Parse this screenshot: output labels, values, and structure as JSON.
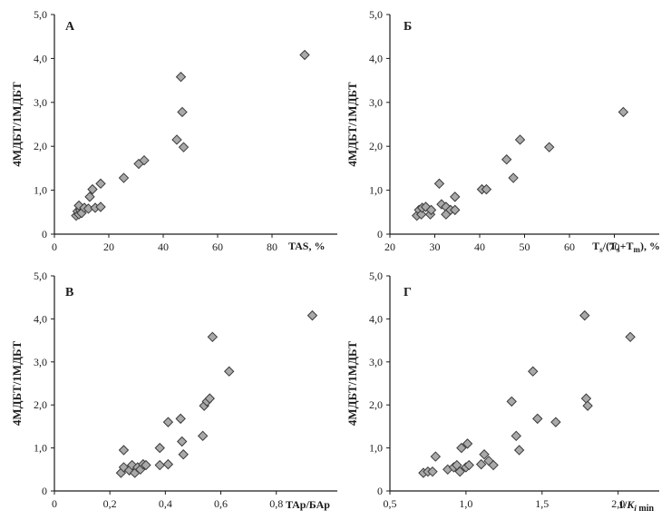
{
  "colors": {
    "marker_fill": "#a9a9a9",
    "marker_stroke": "#3a3a3a",
    "axis": "#1c1c1c",
    "background": "#ffffff"
  },
  "chart_data": [
    {
      "type": "scatter",
      "panel": "А",
      "ylabel": "4МДБТ/1МДБТ",
      "xlabel_text": "TAS, %",
      "xlim": [
        0,
        100
      ],
      "ylim": [
        0,
        5
      ],
      "xticks": [
        "0",
        "20",
        "40",
        "60",
        "80"
      ],
      "yticks": [
        "0",
        "1,0",
        "2,0",
        "3,0",
        "4,0",
        "5,0"
      ],
      "grid": false,
      "points": [
        {
          "x": 8,
          "y": 0.42
        },
        {
          "x": 8.5,
          "y": 0.52
        },
        {
          "x": 9,
          "y": 0.45
        },
        {
          "x": 9.5,
          "y": 0.55
        },
        {
          "x": 10,
          "y": 0.48
        },
        {
          "x": 9,
          "y": 0.65
        },
        {
          "x": 11,
          "y": 0.6
        },
        {
          "x": 12.5,
          "y": 0.58
        },
        {
          "x": 13,
          "y": 0.85
        },
        {
          "x": 14,
          "y": 1.02
        },
        {
          "x": 15,
          "y": 0.6
        },
        {
          "x": 17,
          "y": 0.62
        },
        {
          "x": 17,
          "y": 1.15
        },
        {
          "x": 25.5,
          "y": 1.28
        },
        {
          "x": 31,
          "y": 1.6
        },
        {
          "x": 33,
          "y": 1.68
        },
        {
          "x": 45,
          "y": 2.15
        },
        {
          "x": 47.5,
          "y": 1.98
        },
        {
          "x": 47,
          "y": 2.78
        },
        {
          "x": 46.5,
          "y": 3.58
        },
        {
          "x": 92,
          "y": 4.08
        }
      ]
    },
    {
      "type": "scatter",
      "panel": "Б",
      "ylabel": "4МДБТ/1МДБТ",
      "xlabel_text": "Ts/(Ts+Tm), %",
      "xlim": [
        20,
        80
      ],
      "ylim": [
        0,
        5
      ],
      "xticks": [
        "20",
        "30",
        "40",
        "50",
        "60",
        "70"
      ],
      "yticks": [
        "0",
        "1,0",
        "2,0",
        "3,0",
        "4,0",
        "5,0"
      ],
      "grid": false,
      "points": [
        {
          "x": 26,
          "y": 0.42
        },
        {
          "x": 26.5,
          "y": 0.55
        },
        {
          "x": 27,
          "y": 0.45
        },
        {
          "x": 27.2,
          "y": 0.6
        },
        {
          "x": 28,
          "y": 0.62
        },
        {
          "x": 29,
          "y": 0.45
        },
        {
          "x": 29.2,
          "y": 0.55
        },
        {
          "x": 31,
          "y": 1.15
        },
        {
          "x": 31.5,
          "y": 0.68
        },
        {
          "x": 32.5,
          "y": 0.62
        },
        {
          "x": 32.5,
          "y": 0.45
        },
        {
          "x": 33.5,
          "y": 0.55
        },
        {
          "x": 34.5,
          "y": 0.55
        },
        {
          "x": 34.5,
          "y": 0.85
        },
        {
          "x": 40.5,
          "y": 1.02
        },
        {
          "x": 41.5,
          "y": 1.02
        },
        {
          "x": 46,
          "y": 1.7
        },
        {
          "x": 47.5,
          "y": 1.28
        },
        {
          "x": 49,
          "y": 2.15
        },
        {
          "x": 55.5,
          "y": 1.98
        },
        {
          "x": 72,
          "y": 2.78
        }
      ]
    },
    {
      "type": "scatter",
      "panel": "В",
      "ylabel": "4МДБТ/1МДБТ",
      "xlabel_text": "TAр/БАр",
      "xlim": [
        0,
        1
      ],
      "ylim": [
        0,
        5
      ],
      "xticks": [
        "0",
        "0,2",
        "0,4",
        "0,6",
        "0,8"
      ],
      "yticks": [
        "0",
        "1,0",
        "2,0",
        "3,0",
        "4,0",
        "5,0"
      ],
      "grid": false,
      "points": [
        {
          "x": 0.24,
          "y": 0.42
        },
        {
          "x": 0.25,
          "y": 0.55
        },
        {
          "x": 0.25,
          "y": 0.95
        },
        {
          "x": 0.27,
          "y": 0.48
        },
        {
          "x": 0.28,
          "y": 0.6
        },
        {
          "x": 0.29,
          "y": 0.42
        },
        {
          "x": 0.3,
          "y": 0.55
        },
        {
          "x": 0.31,
          "y": 0.5
        },
        {
          "x": 0.32,
          "y": 0.62
        },
        {
          "x": 0.33,
          "y": 0.6
        },
        {
          "x": 0.38,
          "y": 0.6
        },
        {
          "x": 0.38,
          "y": 1.0
        },
        {
          "x": 0.41,
          "y": 0.62
        },
        {
          "x": 0.41,
          "y": 1.6
        },
        {
          "x": 0.455,
          "y": 1.68
        },
        {
          "x": 0.46,
          "y": 1.15
        },
        {
          "x": 0.465,
          "y": 0.85
        },
        {
          "x": 0.535,
          "y": 1.28
        },
        {
          "x": 0.54,
          "y": 1.98
        },
        {
          "x": 0.55,
          "y": 2.08
        },
        {
          "x": 0.56,
          "y": 2.15
        },
        {
          "x": 0.57,
          "y": 3.58
        },
        {
          "x": 0.63,
          "y": 2.78
        },
        {
          "x": 0.93,
          "y": 4.08
        }
      ]
    },
    {
      "type": "scatter",
      "panel": "Г",
      "ylabel": "4МДБТ/1МДБТ",
      "xlabel_text": "1/Ki min",
      "xlim": [
        0.5,
        2.25
      ],
      "ylim": [
        0,
        5
      ],
      "xticks": [
        "0,5",
        "1,0",
        "1,5",
        "2,0"
      ],
      "yticks": [
        "0",
        "1,0",
        "2,0",
        "3,0",
        "4,0",
        "5,0"
      ],
      "grid": false,
      "points": [
        {
          "x": 0.72,
          "y": 0.42
        },
        {
          "x": 0.75,
          "y": 0.45
        },
        {
          "x": 0.78,
          "y": 0.45
        },
        {
          "x": 0.8,
          "y": 0.8
        },
        {
          "x": 0.88,
          "y": 0.5
        },
        {
          "x": 0.92,
          "y": 0.55
        },
        {
          "x": 0.94,
          "y": 0.6
        },
        {
          "x": 0.96,
          "y": 0.45
        },
        {
          "x": 0.97,
          "y": 1.0
        },
        {
          "x": 1.0,
          "y": 0.55
        },
        {
          "x": 1.01,
          "y": 1.1
        },
        {
          "x": 1.02,
          "y": 0.6
        },
        {
          "x": 1.1,
          "y": 0.62
        },
        {
          "x": 1.12,
          "y": 0.85
        },
        {
          "x": 1.15,
          "y": 0.7
        },
        {
          "x": 1.18,
          "y": 0.6
        },
        {
          "x": 1.3,
          "y": 2.08
        },
        {
          "x": 1.33,
          "y": 1.28
        },
        {
          "x": 1.35,
          "y": 0.95
        },
        {
          "x": 1.44,
          "y": 2.78
        },
        {
          "x": 1.47,
          "y": 1.68
        },
        {
          "x": 1.59,
          "y": 1.6
        },
        {
          "x": 1.78,
          "y": 4.08
        },
        {
          "x": 1.79,
          "y": 2.15
        },
        {
          "x": 1.8,
          "y": 1.98
        },
        {
          "x": 2.08,
          "y": 3.58
        }
      ]
    }
  ]
}
